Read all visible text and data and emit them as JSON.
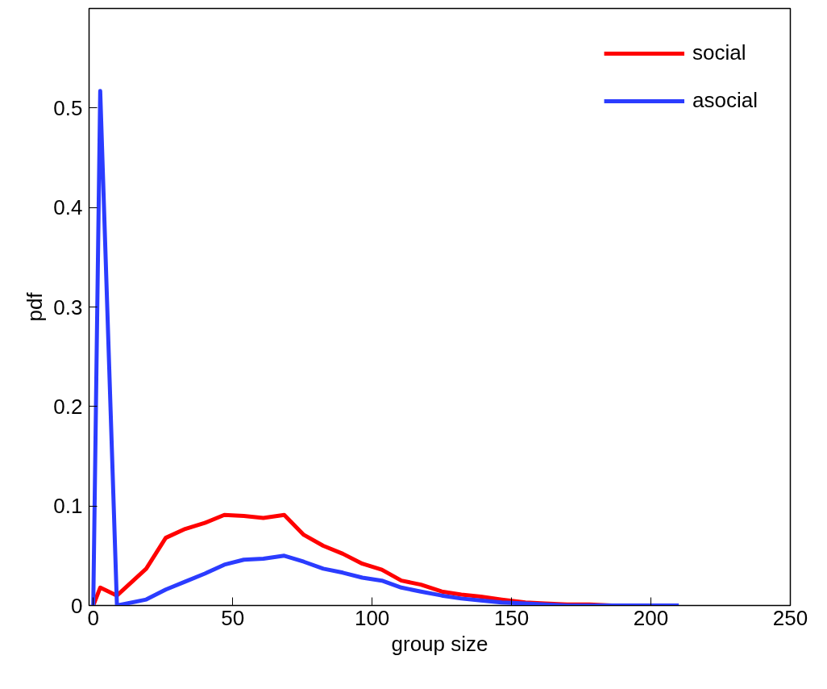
{
  "chart_data": {
    "type": "line",
    "xlabel": "group size",
    "ylabel": "pdf",
    "x": [
      0,
      2.5,
      8.5,
      19,
      26,
      33,
      40,
      47,
      54,
      61,
      68.5,
      75.5,
      82.5,
      89.5,
      96.5,
      103.5,
      110.5,
      117.5,
      125,
      132,
      139,
      146.5,
      155,
      162,
      170,
      178,
      186,
      194,
      202,
      210
    ],
    "series": [
      {
        "name": "social",
        "color": "#ff0000",
        "values": [
          0,
          0.018,
          0.01,
          0.037,
          0.068,
          0.077,
          0.083,
          0.091,
          0.09,
          0.088,
          0.091,
          0.071,
          0.06,
          0.052,
          0.042,
          0.036,
          0.025,
          0.021,
          0.014,
          0.011,
          0.009,
          0.006,
          0.003,
          0.002,
          0.001,
          0.001,
          0,
          null,
          null,
          null
        ]
      },
      {
        "name": "asocial",
        "color": "#2b3cff",
        "values": [
          0,
          0.517,
          0,
          0.006,
          0.016,
          0.024,
          0.032,
          0.041,
          0.046,
          0.047,
          0.05,
          0.044,
          0.037,
          0.033,
          0.028,
          0.025,
          0.018,
          0.014,
          0.01,
          0.007,
          0.005,
          0.003,
          0.002,
          0.001,
          0,
          0,
          0,
          0,
          0,
          0
        ]
      }
    ],
    "xlim": [
      -1.5,
      250
    ],
    "xticks": [
      0,
      50,
      100,
      150,
      200,
      250
    ],
    "ylim": [
      0,
      0.6
    ],
    "yticks": [
      0,
      0.1,
      0.2,
      0.3,
      0.4,
      0.5
    ],
    "grid": false,
    "legend": "top right",
    "marker": "none",
    "line_style": "solid"
  }
}
